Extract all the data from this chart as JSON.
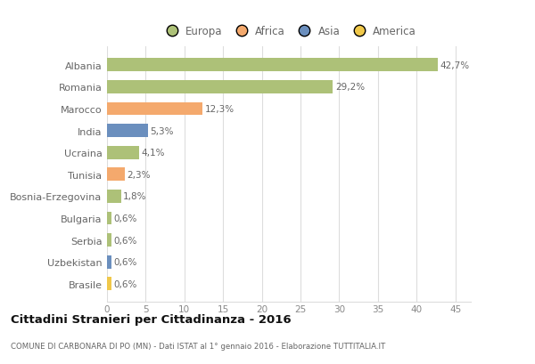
{
  "countries": [
    "Albania",
    "Romania",
    "Marocco",
    "India",
    "Ucraina",
    "Tunisia",
    "Bosnia-Erzegovina",
    "Bulgaria",
    "Serbia",
    "Uzbekistan",
    "Brasile"
  ],
  "values": [
    42.7,
    29.2,
    12.3,
    5.3,
    4.1,
    2.3,
    1.8,
    0.6,
    0.6,
    0.6,
    0.6
  ],
  "labels": [
    "42,7%",
    "29,2%",
    "12,3%",
    "5,3%",
    "4,1%",
    "2,3%",
    "1,8%",
    "0,6%",
    "0,6%",
    "0,6%",
    "0,6%"
  ],
  "colors": [
    "#adc178",
    "#adc178",
    "#f4a96d",
    "#6b8fbe",
    "#adc178",
    "#f4a96d",
    "#adc178",
    "#adc178",
    "#adc178",
    "#6b8fbe",
    "#f0c84a"
  ],
  "legend_labels": [
    "Europa",
    "Africa",
    "Asia",
    "America"
  ],
  "legend_colors": [
    "#adc178",
    "#f4a96d",
    "#6b8fbe",
    "#f0c84a"
  ],
  "title": "Cittadini Stranieri per Cittadinanza - 2016",
  "subtitle": "COMUNE DI CARBONARA DI PO (MN) - Dati ISTAT al 1° gennaio 2016 - Elaborazione TUTTITALIA.IT",
  "xlim": [
    0,
    47
  ],
  "xticks": [
    0,
    5,
    10,
    15,
    20,
    25,
    30,
    35,
    40,
    45
  ],
  "background_color": "#ffffff",
  "grid_color": "#dddddd"
}
